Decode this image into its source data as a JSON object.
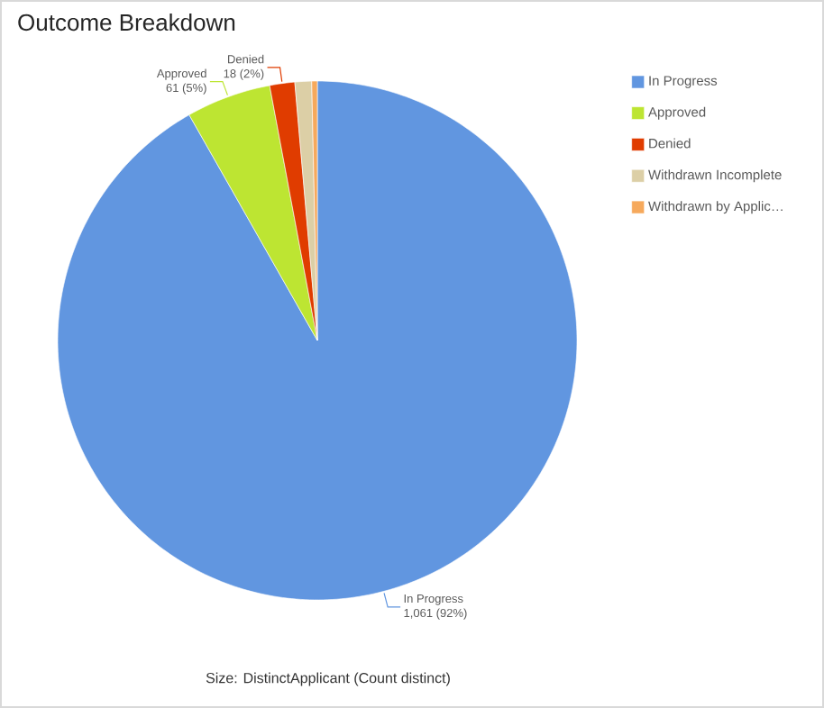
{
  "chart_data": {
    "type": "pie",
    "title": "Outcome Breakdown",
    "categories": [
      "In Progress",
      "Approved",
      "Denied",
      "Withdrawn Incomplete",
      "Withdrawn by Applic…"
    ],
    "values": [
      1061,
      61,
      18,
      12,
      4
    ],
    "colors": [
      "#6196e0",
      "#bde532",
      "#e03c00",
      "#dccfa6",
      "#f6a95c"
    ],
    "value_labels": [
      "1,061 (92%)",
      "61 (5%)",
      "18 (2%)",
      null,
      null
    ],
    "legend": "right",
    "annotations": [
      "Size: DistinctApplicant (Count distinct)"
    ]
  }
}
